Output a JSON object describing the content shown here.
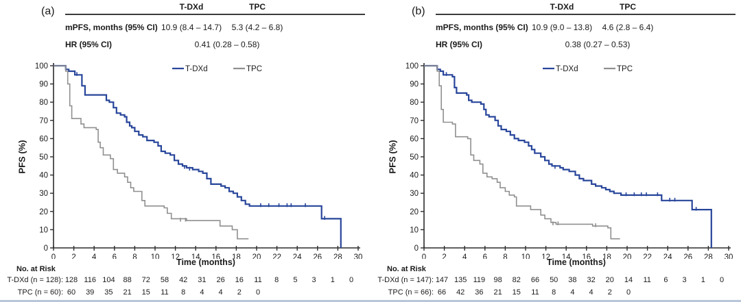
{
  "panels": [
    {
      "label": "(a)",
      "summary": {
        "columns": [
          "T-DXd",
          "TPC"
        ],
        "rows": [
          {
            "label": "mPFS, months (95% CI)",
            "tdxd": "10.9 (8.4 – 14.7)",
            "tpc": "5.3 (4.2 – 6.8)"
          },
          {
            "label": "HR (95% CI)",
            "combined": "0.41 (0.28 – 0.58)"
          }
        ]
      },
      "y_axis_label": "PFS (%)",
      "x_axis_label": "Time (months)",
      "risk_table": {
        "title": "No. at Risk",
        "rows": [
          {
            "label": "T-DXd (n = 128):",
            "values": [
              "128",
              "116",
              "104",
              "88",
              "72",
              "58",
              "42",
              "31",
              "26",
              "16",
              "11",
              "8",
              "5",
              "3",
              "1",
              "0"
            ]
          },
          {
            "label": "TPC (n = 60):",
            "values": [
              "60",
              "39",
              "35",
              "21",
              "15",
              "11",
              "8",
              "4",
              "4",
              "2",
              "0"
            ]
          }
        ]
      }
    },
    {
      "label": "(b)",
      "summary": {
        "columns": [
          "T-DXd",
          "TPC"
        ],
        "rows": [
          {
            "label": "mPFS, months (95% CI)",
            "tdxd": "10.9 (9.0 – 13.8)",
            "tpc": "4.6 (2.8 – 6.4)"
          },
          {
            "label": "HR (95% CI)",
            "combined": "0.38 (0.27 – 0.53)"
          }
        ]
      },
      "y_axis_label": "PFS (%)",
      "x_axis_label": "Time (months)",
      "risk_table": {
        "title": "No. at Risk",
        "rows": [
          {
            "label": "T-DXd (n = 147):",
            "values": [
              "147",
              "135",
              "119",
              "98",
              "82",
              "66",
              "50",
              "38",
              "32",
              "20",
              "14",
              "11",
              "6",
              "3",
              "1",
              "0"
            ]
          },
          {
            "label": "TPC (n = 66):",
            "values": [
              "66",
              "42",
              "36",
              "21",
              "15",
              "11",
              "8",
              "4",
              "4",
              "2",
              "0"
            ]
          }
        ]
      }
    }
  ],
  "chart_data": [
    {
      "type": "line",
      "subtype": "kaplan-meier-step",
      "panel": "(a)",
      "title": "",
      "xlabel": "Time (months)",
      "ylabel": "PFS (%)",
      "xlim": [
        0,
        30
      ],
      "ylim": [
        0,
        100
      ],
      "xticks": [
        0,
        2,
        4,
        6,
        8,
        10,
        12,
        14,
        16,
        18,
        20,
        22,
        24,
        26,
        28,
        30
      ],
      "yticks": [
        0,
        10,
        20,
        30,
        40,
        50,
        60,
        70,
        80,
        90,
        100
      ],
      "grid": false,
      "legend_position": "top-center-inside",
      "legend": [
        "T-DXd",
        "TPC"
      ],
      "series": [
        {
          "name": "T-DXd",
          "color": "#27459a",
          "steps": [
            [
              0,
              100
            ],
            [
              1.2,
              98
            ],
            [
              1.5,
              97
            ],
            [
              2.1,
              95
            ],
            [
              2.8,
              89
            ],
            [
              3.1,
              84
            ],
            [
              5.2,
              81
            ],
            [
              5.5,
              80
            ],
            [
              5.9,
              77
            ],
            [
              6.2,
              74
            ],
            [
              6.6,
              73
            ],
            [
              7.0,
              72
            ],
            [
              7.2,
              69
            ],
            [
              7.5,
              67
            ],
            [
              7.7,
              66
            ],
            [
              8.0,
              64
            ],
            [
              8.4,
              62
            ],
            [
              8.8,
              61
            ],
            [
              9.2,
              59
            ],
            [
              9.9,
              58
            ],
            [
              10.3,
              56
            ],
            [
              10.6,
              53
            ],
            [
              11.0,
              52
            ],
            [
              11.5,
              51
            ],
            [
              11.9,
              48
            ],
            [
              12.3,
              46
            ],
            [
              12.7,
              45
            ],
            [
              13.1,
              44
            ],
            [
              13.7,
              43
            ],
            [
              14.3,
              42
            ],
            [
              14.7,
              41
            ],
            [
              15.1,
              38
            ],
            [
              15.5,
              35
            ],
            [
              16.5,
              34
            ],
            [
              16.9,
              33
            ],
            [
              17.3,
              31
            ],
            [
              17.7,
              30
            ],
            [
              18.1,
              28
            ],
            [
              18.5,
              26
            ],
            [
              18.9,
              24
            ],
            [
              19.3,
              23
            ],
            [
              26.4,
              16
            ],
            [
              28.3,
              0
            ]
          ],
          "censor_marks": [
            [
              2.3,
              95
            ],
            [
              12.9,
              44
            ],
            [
              13.4,
              43
            ],
            [
              20.4,
              23
            ],
            [
              21.2,
              23
            ],
            [
              22.2,
              23
            ],
            [
              23.0,
              23
            ],
            [
              23.4,
              23
            ],
            [
              24.8,
              23
            ],
            [
              26.7,
              16
            ]
          ]
        },
        {
          "name": "TPC",
          "color": "#8f8f8f",
          "steps": [
            [
              0,
              100
            ],
            [
              1.2,
              97
            ],
            [
              1.4,
              90
            ],
            [
              1.6,
              78
            ],
            [
              1.8,
              71
            ],
            [
              2.7,
              68
            ],
            [
              3.0,
              66
            ],
            [
              4.2,
              65
            ],
            [
              4.4,
              58
            ],
            [
              4.6,
              55
            ],
            [
              4.9,
              51
            ],
            [
              5.6,
              49
            ],
            [
              5.9,
              43
            ],
            [
              6.3,
              41
            ],
            [
              7.0,
              39
            ],
            [
              7.3,
              36
            ],
            [
              7.6,
              33
            ],
            [
              7.9,
              31
            ],
            [
              8.7,
              26
            ],
            [
              9.0,
              23
            ],
            [
              10.9,
              22
            ],
            [
              11.2,
              19
            ],
            [
              11.6,
              16
            ],
            [
              13.1,
              15
            ],
            [
              16.4,
              12
            ],
            [
              17.6,
              10
            ],
            [
              18.1,
              5
            ],
            [
              19.2,
              5
            ]
          ],
          "censor_marks": [
            [
              12.5,
              15
            ],
            [
              13.0,
              15
            ]
          ]
        }
      ]
    },
    {
      "type": "line",
      "subtype": "kaplan-meier-step",
      "panel": "(b)",
      "title": "",
      "xlabel": "Time (months)",
      "ylabel": "PFS (%)",
      "xlim": [
        0,
        30
      ],
      "ylim": [
        0,
        100
      ],
      "xticks": [
        0,
        2,
        4,
        6,
        8,
        10,
        12,
        14,
        16,
        18,
        20,
        22,
        24,
        26,
        28,
        30
      ],
      "yticks": [
        0,
        10,
        20,
        30,
        40,
        50,
        60,
        70,
        80,
        90,
        100
      ],
      "grid": false,
      "legend_position": "top-center-inside",
      "legend": [
        "T-DXd",
        "TPC"
      ],
      "series": [
        {
          "name": "T-DXd",
          "color": "#27459a",
          "steps": [
            [
              0,
              100
            ],
            [
              1.3,
              98
            ],
            [
              1.6,
              97
            ],
            [
              1.9,
              95
            ],
            [
              2.8,
              94
            ],
            [
              3.0,
              88
            ],
            [
              3.2,
              85
            ],
            [
              4.2,
              84
            ],
            [
              4.4,
              81
            ],
            [
              4.7,
              80
            ],
            [
              5.6,
              79
            ],
            [
              5.9,
              76
            ],
            [
              6.1,
              73
            ],
            [
              6.4,
              72
            ],
            [
              7.0,
              70
            ],
            [
              7.3,
              67
            ],
            [
              7.6,
              65
            ],
            [
              8.1,
              64
            ],
            [
              8.5,
              62
            ],
            [
              8.9,
              60
            ],
            [
              9.3,
              59
            ],
            [
              9.9,
              58
            ],
            [
              10.3,
              56
            ],
            [
              10.6,
              54
            ],
            [
              10.9,
              52
            ],
            [
              11.5,
              50
            ],
            [
              11.9,
              48
            ],
            [
              12.3,
              46
            ],
            [
              12.6,
              45
            ],
            [
              13.4,
              44
            ],
            [
              13.7,
              43
            ],
            [
              14.3,
              42
            ],
            [
              14.9,
              40
            ],
            [
              15.3,
              38
            ],
            [
              15.7,
              37
            ],
            [
              16.5,
              35
            ],
            [
              16.9,
              34
            ],
            [
              17.5,
              33
            ],
            [
              17.9,
              32
            ],
            [
              18.3,
              31
            ],
            [
              18.7,
              30
            ],
            [
              19.4,
              29
            ],
            [
              23.4,
              26
            ],
            [
              26.4,
              21
            ],
            [
              28.3,
              0
            ]
          ],
          "censor_marks": [
            [
              2.2,
              95
            ],
            [
              12.9,
              44
            ],
            [
              19.9,
              29
            ],
            [
              20.7,
              29
            ],
            [
              21.4,
              29
            ],
            [
              21.9,
              29
            ],
            [
              23.0,
              29
            ],
            [
              24.2,
              26
            ],
            [
              24.7,
              26
            ],
            [
              26.8,
              21
            ]
          ]
        },
        {
          "name": "TPC",
          "color": "#8f8f8f",
          "steps": [
            [
              0,
              100
            ],
            [
              1.3,
              97
            ],
            [
              1.5,
              89
            ],
            [
              1.7,
              76
            ],
            [
              1.9,
              69
            ],
            [
              2.8,
              68
            ],
            [
              3.1,
              61
            ],
            [
              4.3,
              60
            ],
            [
              4.6,
              51
            ],
            [
              4.9,
              48
            ],
            [
              5.5,
              46
            ],
            [
              5.8,
              41
            ],
            [
              6.2,
              39
            ],
            [
              6.7,
              38
            ],
            [
              7.2,
              36
            ],
            [
              7.5,
              33
            ],
            [
              8.0,
              31
            ],
            [
              8.4,
              29
            ],
            [
              8.9,
              28
            ],
            [
              9.1,
              23
            ],
            [
              10.5,
              21
            ],
            [
              11.5,
              18
            ],
            [
              11.9,
              16
            ],
            [
              12.5,
              14
            ],
            [
              13.0,
              13
            ],
            [
              16.6,
              12
            ],
            [
              18.1,
              11
            ],
            [
              18.4,
              5
            ],
            [
              19.3,
              5
            ]
          ],
          "censor_marks": [
            [
              12.7,
              13
            ],
            [
              13.2,
              13
            ],
            [
              16.9,
              12
            ]
          ]
        }
      ]
    }
  ]
}
